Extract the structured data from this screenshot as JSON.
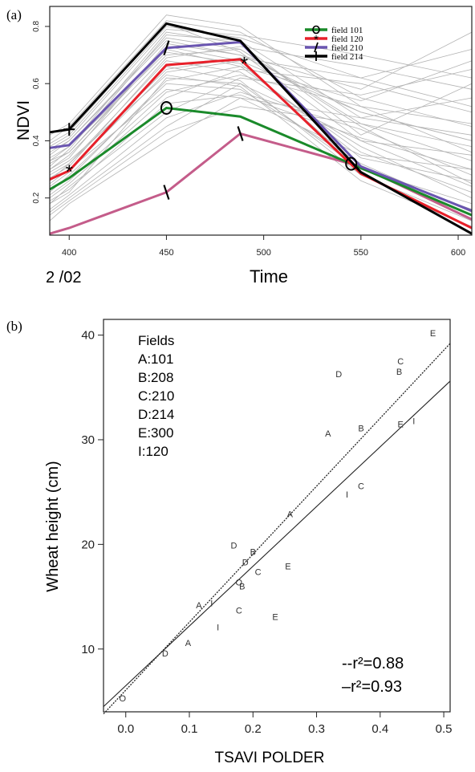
{
  "chart_data": [
    {
      "panel": "(a)",
      "type": "line",
      "ylabel": "NDVI",
      "xlabel": "Time",
      "x_left_label": "2 /02",
      "xticks": [
        400,
        450,
        500,
        550,
        600
      ],
      "xtick_labels": [
        "400",
        "450",
        "500",
        "550",
        "600"
      ],
      "yticks": [
        0.2,
        0.4,
        0.6,
        0.8
      ],
      "ytick_labels": [
        "0.2",
        "0.4",
        "0.6",
        "0.8"
      ],
      "xlim": [
        390,
        607
      ],
      "ylim": [
        0.07,
        0.87
      ],
      "grid": false,
      "legend_position": "top-right",
      "legend": [
        {
          "symbol": "O",
          "label": "field 101",
          "color": "#1a8a2a"
        },
        {
          "symbol": "*",
          "label": "field 120",
          "color": "#e8202a"
        },
        {
          "symbol": "/",
          "label": "field 210",
          "color": "#6a55b0"
        },
        {
          "symbol": "+",
          "label": "field 214",
          "color": "#000000"
        }
      ],
      "x": [
        390,
        400,
        450,
        488,
        550,
        607
      ],
      "series": [
        {
          "name": "field 101",
          "color": "#1a8a2a",
          "marker": "O",
          "values": [
            0.23,
            0.27,
            0.515,
            0.485,
            0.305,
            0.14
          ],
          "marker_at": [
            450,
            545
          ]
        },
        {
          "name": "field 120",
          "color": "#e8202a",
          "marker": "*",
          "values": [
            0.265,
            0.295,
            0.665,
            0.685,
            0.285,
            0.095
          ],
          "marker_at": [
            400,
            490
          ]
        },
        {
          "name": "field 210",
          "color": "#6a55b0",
          "marker": "/",
          "values": [
            0.375,
            0.385,
            0.725,
            0.745,
            0.31,
            0.155
          ],
          "marker_at": [
            450
          ]
        },
        {
          "name": "field 214",
          "color": "#000000",
          "marker": "+",
          "values": [
            0.43,
            0.44,
            0.81,
            0.75,
            0.29,
            0.075
          ],
          "marker_at": [
            400
          ]
        }
      ],
      "extra_series": [
        {
          "color": "#c45c8a",
          "marker": "/",
          "values": [
            0.075,
            0.095,
            0.22,
            0.425,
            0.31,
            0.125
          ],
          "marker_at": [
            450,
            488
          ]
        }
      ],
      "background_series": [
        [
          0.18,
          0.22,
          0.62,
          0.6,
          0.3,
          0.18
        ],
        [
          0.3,
          0.35,
          0.7,
          0.72,
          0.45,
          0.25
        ],
        [
          0.25,
          0.3,
          0.58,
          0.55,
          0.35,
          0.3
        ],
        [
          0.35,
          0.4,
          0.75,
          0.7,
          0.5,
          0.4
        ],
        [
          0.15,
          0.2,
          0.45,
          0.6,
          0.4,
          0.35
        ],
        [
          0.4,
          0.45,
          0.82,
          0.78,
          0.55,
          0.45
        ],
        [
          0.2,
          0.25,
          0.55,
          0.65,
          0.6,
          0.5
        ],
        [
          0.28,
          0.32,
          0.68,
          0.64,
          0.38,
          0.2
        ],
        [
          0.33,
          0.38,
          0.78,
          0.74,
          0.42,
          0.6
        ],
        [
          0.12,
          0.18,
          0.4,
          0.55,
          0.48,
          0.55
        ],
        [
          0.22,
          0.28,
          0.6,
          0.58,
          0.32,
          0.15
        ],
        [
          0.38,
          0.42,
          0.8,
          0.76,
          0.62,
          0.72
        ],
        [
          0.26,
          0.3,
          0.64,
          0.68,
          0.5,
          0.4
        ],
        [
          0.32,
          0.36,
          0.72,
          0.66,
          0.36,
          0.22
        ],
        [
          0.18,
          0.24,
          0.5,
          0.62,
          0.56,
          0.65
        ],
        [
          0.36,
          0.4,
          0.76,
          0.72,
          0.46,
          0.33
        ],
        [
          0.24,
          0.29,
          0.66,
          0.61,
          0.28,
          0.12
        ],
        [
          0.3,
          0.34,
          0.74,
          0.7,
          0.58,
          0.78
        ],
        [
          0.16,
          0.21,
          0.48,
          0.57,
          0.44,
          0.28
        ],
        [
          0.42,
          0.46,
          0.84,
          0.8,
          0.52,
          0.36
        ],
        [
          0.27,
          0.31,
          0.69,
          0.73,
          0.66,
          0.58
        ],
        [
          0.34,
          0.38,
          0.71,
          0.67,
          0.34,
          0.26
        ],
        [
          0.21,
          0.26,
          0.57,
          0.63,
          0.52,
          0.46
        ],
        [
          0.29,
          0.33,
          0.63,
          0.59,
          0.26,
          0.1
        ],
        [
          0.37,
          0.41,
          0.79,
          0.77,
          0.7,
          0.62
        ],
        [
          0.19,
          0.23,
          0.53,
          0.56,
          0.41,
          0.3
        ],
        [
          0.31,
          0.37,
          0.77,
          0.75,
          0.48,
          0.42
        ],
        [
          0.23,
          0.27,
          0.61,
          0.66,
          0.54,
          0.68
        ],
        [
          0.39,
          0.43,
          0.81,
          0.71,
          0.4,
          0.24
        ],
        [
          0.14,
          0.19,
          0.43,
          0.52,
          0.46,
          0.38
        ],
        [
          0.26,
          0.32,
          0.65,
          0.69,
          0.62,
          0.52
        ],
        [
          0.33,
          0.36,
          0.73,
          0.68,
          0.3,
          0.16
        ]
      ]
    },
    {
      "panel": "(b)",
      "type": "scatter",
      "xlabel": "TSAVI POLDER",
      "ylabel": "Wheat height (cm)",
      "xticks": [
        0.0,
        0.1,
        0.2,
        0.3,
        0.4,
        0.5
      ],
      "xtick_labels": [
        "0.0",
        "0.1",
        "0.2",
        "0.3",
        "0.4",
        "0.5"
      ],
      "yticks": [
        10,
        20,
        30,
        40
      ],
      "ytick_labels": [
        "10",
        "20",
        "30",
        "40"
      ],
      "xlim": [
        -0.035,
        0.51
      ],
      "ylim": [
        4.0,
        41.5
      ],
      "grid": false,
      "legend_position": "top-left",
      "legend_title": "Fields",
      "legend": [
        "A:101",
        "B:208",
        "C:210",
        "D:214",
        "E:300",
        "I:120"
      ],
      "points": [
        {
          "label": "E",
          "x": 0.483,
          "y": 40.2
        },
        {
          "label": "C",
          "x": 0.432,
          "y": 37.5
        },
        {
          "label": "B",
          "x": 0.43,
          "y": 36.5
        },
        {
          "label": "D",
          "x": 0.335,
          "y": 36.3
        },
        {
          "label": "B",
          "x": 0.37,
          "y": 31.1
        },
        {
          "label": "E",
          "x": 0.432,
          "y": 31.5
        },
        {
          "label": "I",
          "x": 0.453,
          "y": 31.8
        },
        {
          "label": "A",
          "x": 0.318,
          "y": 30.6
        },
        {
          "label": "C",
          "x": 0.37,
          "y": 25.6
        },
        {
          "label": "I",
          "x": 0.348,
          "y": 24.8
        },
        {
          "label": "A",
          "x": 0.258,
          "y": 22.9
        },
        {
          "label": "D",
          "x": 0.17,
          "y": 19.9
        },
        {
          "label": "B",
          "x": 0.2,
          "y": 19.3
        },
        {
          "label": "D",
          "x": 0.188,
          "y": 18.3
        },
        {
          "label": "E",
          "x": 0.255,
          "y": 17.9
        },
        {
          "label": "C",
          "x": 0.208,
          "y": 17.4
        },
        {
          "label": "O",
          "x": 0.178,
          "y": 16.4
        },
        {
          "label": "B",
          "x": 0.183,
          "y": 16.0
        },
        {
          "label": "A",
          "x": 0.115,
          "y": 14.2
        },
        {
          "label": "I",
          "x": 0.135,
          "y": 14.4
        },
        {
          "label": "C",
          "x": 0.178,
          "y": 13.7
        },
        {
          "label": "E",
          "x": 0.235,
          "y": 13.1
        },
        {
          "label": "I",
          "x": 0.145,
          "y": 12.1
        },
        {
          "label": "A",
          "x": 0.098,
          "y": 10.6
        },
        {
          "label": "D",
          "x": 0.062,
          "y": 9.6
        },
        {
          "label": "O",
          "x": -0.005,
          "y": 5.3
        }
      ],
      "fit_lines": [
        {
          "style": "dashed",
          "label": "--r²=0.88",
          "x": [
            -0.035,
            0.51
          ],
          "y": [
            3.8,
            39.2
          ]
        },
        {
          "style": "solid",
          "label": "–r²=0.93",
          "x": [
            -0.035,
            0.51
          ],
          "y": [
            4.5,
            35.6
          ]
        }
      ]
    }
  ]
}
